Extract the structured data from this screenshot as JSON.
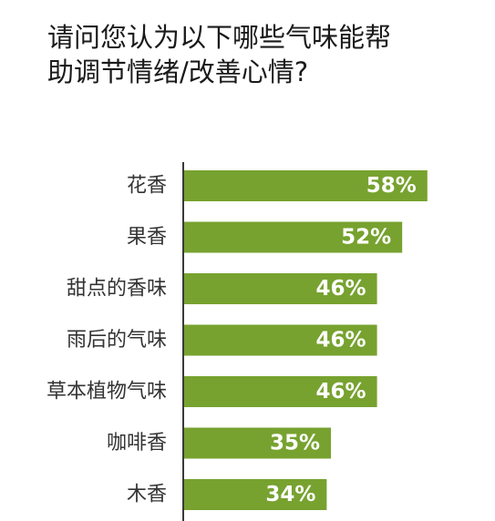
{
  "title_lines": [
    "请问您认为以下哪些气味能帮",
    "助调节情绪/改善心情?"
  ],
  "chart_data": {
    "type": "bar",
    "orientation": "horizontal",
    "title": "请问您认为以下哪些气味能帮助调节情绪/改善心情?",
    "categories": [
      "花香",
      "果香",
      "甜点的香味",
      "雨后的气味",
      "草本植物气味",
      "咖啡香",
      "木香"
    ],
    "values": [
      58,
      52,
      46,
      46,
      46,
      35,
      34
    ],
    "value_labels": [
      "58%",
      "52%",
      "46%",
      "46%",
      "46%",
      "35%",
      "34%"
    ],
    "unit": "%",
    "xlim": [
      0,
      100
    ],
    "grid": false,
    "legend": "none",
    "bar_color": "#77a22f",
    "value_label_color": "#ffffff"
  }
}
